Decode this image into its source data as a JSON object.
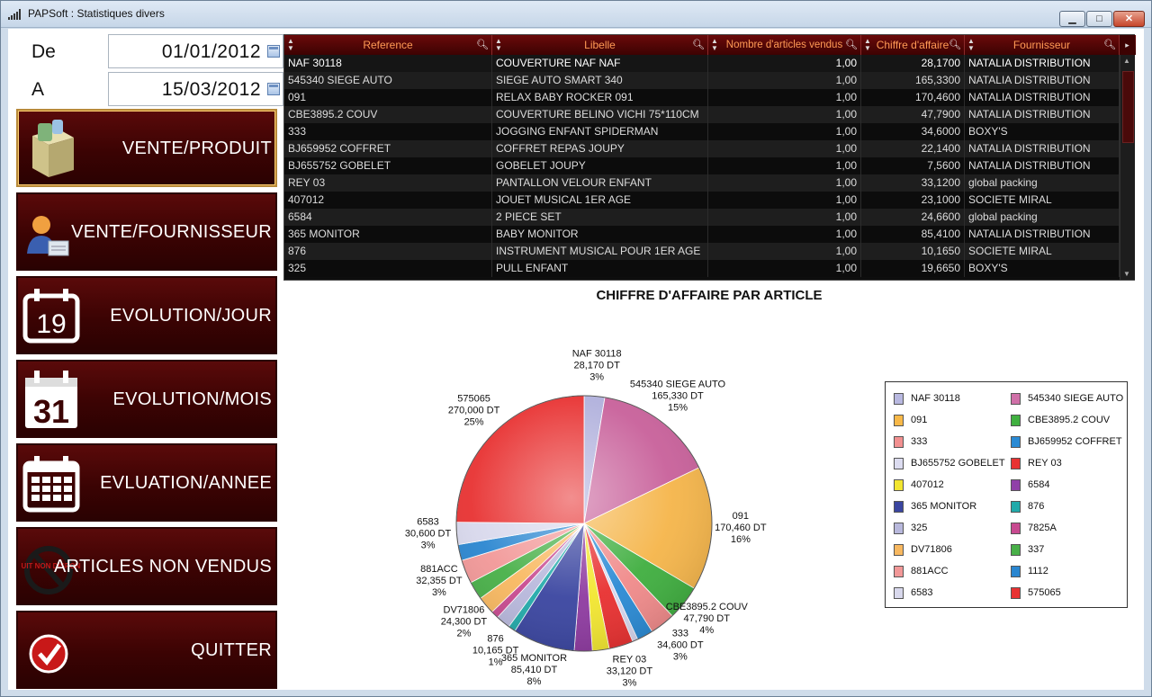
{
  "window": {
    "title": "PAPSoft : Statistiques divers"
  },
  "dates": [
    {
      "label": "De",
      "value": "01/01/2012"
    },
    {
      "label": "A",
      "value": "15/03/2012"
    }
  ],
  "menu": [
    {
      "label": "VENTE/PRODUIT",
      "icon": "product-box-icon",
      "active": true
    },
    {
      "label": "VENTE/FOURNISSEUR",
      "icon": "supplier-person-icon",
      "active": false
    },
    {
      "label": "EVOLUTION/JOUR",
      "icon": "calendar-day-icon",
      "day": "19",
      "active": false
    },
    {
      "label": "EVOLUTION/MOIS",
      "icon": "calendar-month-icon",
      "day": "31",
      "active": false
    },
    {
      "label": "EVLUATION/ANNEE",
      "icon": "calendar-year-icon",
      "active": false
    },
    {
      "label": "ARTICLES NON VENDUS",
      "icon": "product-unavailable-icon",
      "badge": "PRODUIT NON DISPONIBLE",
      "active": false
    },
    {
      "label": "QUITTER",
      "icon": "check-circle-icon",
      "active": false
    }
  ],
  "grid": {
    "columns": [
      "Reference",
      "Libelle",
      "Nombre d'articles vendus",
      "Chiffre d'affaire",
      "Fournisseur"
    ],
    "rows": [
      [
        "NAF 30118",
        "COUVERTURE NAF NAF",
        "1,00",
        "28,1700",
        "NATALIA DISTRIBUTION"
      ],
      [
        "545340 SIEGE AUTO",
        "SIEGE AUTO SMART 340",
        "1,00",
        "165,3300",
        "NATALIA DISTRIBUTION"
      ],
      [
        "091",
        "RELAX BABY ROCKER 091",
        "1,00",
        "170,4600",
        "NATALIA DISTRIBUTION"
      ],
      [
        "CBE3895.2 COUV",
        "COUVERTURE BELINO VICHI 75*110CM",
        "1,00",
        "47,7900",
        "NATALIA DISTRIBUTION"
      ],
      [
        "333",
        "JOGGING ENFANT SPIDERMAN",
        "1,00",
        "34,6000",
        "BOXY'S"
      ],
      [
        "BJ659952 COFFRET",
        "COFFRET REPAS JOUPY",
        "1,00",
        "22,1400",
        "NATALIA DISTRIBUTION"
      ],
      [
        "BJ655752 GOBELET",
        "GOBELET JOUPY",
        "1,00",
        "7,5600",
        "NATALIA DISTRIBUTION"
      ],
      [
        "REY 03",
        "PANTALLON VELOUR ENFANT",
        "1,00",
        "33,1200",
        "global packing"
      ],
      [
        "407012",
        "JOUET MUSICAL 1ER AGE",
        "1,00",
        "23,1000",
        "SOCIETE MIRAL"
      ],
      [
        "6584",
        "2 PIECE SET",
        "1,00",
        "24,6600",
        "global packing"
      ],
      [
        "365 MONITOR",
        "BABY MONITOR",
        "1,00",
        "85,4100",
        "NATALIA DISTRIBUTION"
      ],
      [
        "876",
        "INSTRUMENT MUSICAL POUR 1ER AGE",
        "1,00",
        "10,1650",
        "SOCIETE MIRAL"
      ],
      [
        "325",
        "PULL ENFANT",
        "1,00",
        "19,6650",
        "BOXY'S"
      ]
    ]
  },
  "chart_data": {
    "type": "pie",
    "title": "CHIFFRE D'AFFAIRE PAR ARTICLE",
    "slices": [
      {
        "name": "NAF 30118",
        "value": 28.17,
        "color": "#b0b0dc"
      },
      {
        "name": "545340 SIEGE AUTO",
        "value": 165.33,
        "color": "#c8609a"
      },
      {
        "name": "091",
        "value": 170.46,
        "color": "#f5b54a"
      },
      {
        "name": "CBE3895.2 COUV",
        "value": 47.79,
        "color": "#3fae3f"
      },
      {
        "name": "333",
        "value": 34.6,
        "color": "#f08a8a"
      },
      {
        "name": "BJ659952 COFFRET",
        "value": 22.14,
        "color": "#2a8ad4"
      },
      {
        "name": "BJ655752 GOBELET",
        "value": 7.56,
        "color": "#d6d6ee"
      },
      {
        "name": "REY 03",
        "value": 33.12,
        "color": "#e83030"
      },
      {
        "name": "407012",
        "value": 23.1,
        "color": "#f2e630"
      },
      {
        "name": "6584",
        "value": 24.66,
        "color": "#8e3aa0"
      },
      {
        "name": "365 MONITOR",
        "value": 85.41,
        "color": "#3a45a0"
      },
      {
        "name": "876",
        "value": 10.165,
        "color": "#22aaaa"
      },
      {
        "name": "325",
        "value": 19.665,
        "color": "#b8b8dc"
      },
      {
        "name": "7825A",
        "value": 10.5,
        "color": "#c84a90"
      },
      {
        "name": "DV71806",
        "value": 24.3,
        "color": "#f8b860"
      },
      {
        "name": "337",
        "value": 25.0,
        "color": "#48b048"
      },
      {
        "name": "881ACC",
        "value": 32.355,
        "color": "#f29898"
      },
      {
        "name": "1112",
        "value": 22.0,
        "color": "#2a86d0"
      },
      {
        "name": "6583",
        "value": 30.6,
        "color": "#d8d8ec"
      },
      {
        "name": "575065",
        "value": 270.0,
        "color": "#e83232"
      }
    ],
    "labels": [
      {
        "slice": "NAF 30118",
        "lines": [
          "NAF 30118",
          "28,170 DT",
          "3%"
        ]
      },
      {
        "slice": "545340 SIEGE AUTO",
        "lines": [
          "545340 SIEGE AUTO",
          "165,330 DT",
          "15%"
        ]
      },
      {
        "slice": "091",
        "lines": [
          "091",
          "170,460 DT",
          "16%"
        ]
      },
      {
        "slice": "CBE3895.2 COUV",
        "lines": [
          "CBE3895.2 COUV",
          "47,790 DT",
          "4%"
        ]
      },
      {
        "slice": "333",
        "lines": [
          "333",
          "34,600 DT",
          "3%"
        ]
      },
      {
        "slice": "REY 03",
        "lines": [
          "REY 03",
          "33,120 DT",
          "3%"
        ]
      },
      {
        "slice": "365 MONITOR",
        "lines": [
          "365 MONITOR",
          "85,410 DT",
          "8%"
        ]
      },
      {
        "slice": "876",
        "lines": [
          "876",
          "10,165 DT",
          "1%"
        ]
      },
      {
        "slice": "DV71806",
        "lines": [
          "DV71806",
          "24,300 DT",
          "2%"
        ]
      },
      {
        "slice": "881ACC",
        "lines": [
          "881ACC",
          "32,355 DT",
          "3%"
        ]
      },
      {
        "slice": "6583",
        "lines": [
          "6583",
          "30,600 DT",
          "3%"
        ]
      },
      {
        "slice": "575065",
        "lines": [
          "575065",
          "270,000 DT",
          "25%"
        ]
      }
    ],
    "legend": [
      {
        "name": "NAF 30118",
        "color": "#b8b8e0"
      },
      {
        "name": "545340 SIEGE AUTO",
        "color": "#d070a8"
      },
      {
        "name": "091",
        "color": "#f8b848"
      },
      {
        "name": "CBE3895.2 COUV",
        "color": "#40b040"
      },
      {
        "name": "333",
        "color": "#f29090"
      },
      {
        "name": "BJ659952 COFFRET",
        "color": "#2a8ad4"
      },
      {
        "name": "BJ655752 GOBELET",
        "color": "#dcdcf0"
      },
      {
        "name": "REY 03",
        "color": "#e83232"
      },
      {
        "name": "407012",
        "color": "#f2e630"
      },
      {
        "name": "6584",
        "color": "#9040a8"
      },
      {
        "name": "365 MONITOR",
        "color": "#3a45a0"
      },
      {
        "name": "876",
        "color": "#22aaaa"
      },
      {
        "name": "325",
        "color": "#b8b8dc"
      },
      {
        "name": "7825A",
        "color": "#c84a90"
      },
      {
        "name": "DV71806",
        "color": "#f8b860"
      },
      {
        "name": "337",
        "color": "#48b048"
      },
      {
        "name": "881ACC",
        "color": "#f29898"
      },
      {
        "name": "1112",
        "color": "#2a86d0"
      },
      {
        "name": "6583",
        "color": "#d8d8ec"
      },
      {
        "name": "575065",
        "color": "#e83232"
      }
    ]
  }
}
